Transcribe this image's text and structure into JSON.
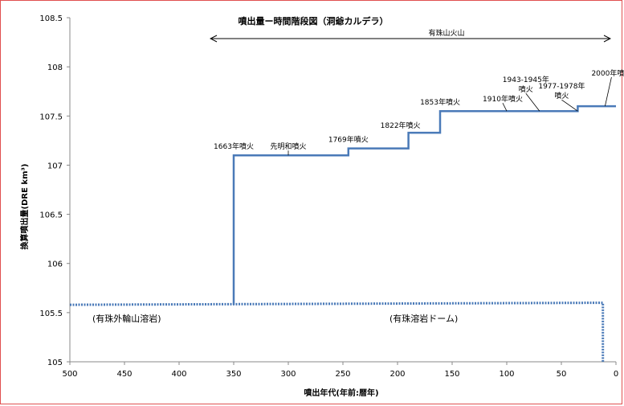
{
  "chart_data": {
    "type": "line",
    "title": "噴出量ー時間階段図（洞爺カルデラ）",
    "xlabel": "噴出年代(年前:暦年)",
    "ylabel": "換算噴出量(DRE km³)",
    "xlim": [
      500,
      0
    ],
    "ylim": [
      105,
      108.5
    ],
    "x_ticks": [
      "500",
      "450",
      "400",
      "350",
      "300",
      "250",
      "200",
      "150",
      "100",
      "50",
      "0"
    ],
    "y_ticks": [
      "105",
      "105.5",
      "106",
      "106.5",
      "107",
      "107.5",
      "108",
      "108.5"
    ],
    "grid": false,
    "series": [
      {
        "style": "solid",
        "color": "#4a7ab8",
        "points": [
          [
            350,
            105.58
          ],
          [
            350,
            107.1
          ],
          [
            245,
            107.1
          ],
          [
            245,
            107.17
          ],
          [
            190,
            107.17
          ],
          [
            190,
            107.33
          ],
          [
            161,
            107.33
          ],
          [
            161,
            107.55
          ],
          [
            35,
            107.55
          ],
          [
            35,
            107.6
          ],
          [
            0,
            107.6
          ]
        ]
      },
      {
        "style": "dotted",
        "color": "#4a7ab8",
        "points": [
          [
            500,
            105.58
          ],
          [
            12,
            105.6
          ],
          [
            12,
            105
          ]
        ]
      }
    ],
    "annotations": [
      {
        "text": "1663年噴火",
        "x": 350,
        "y": 107.1
      },
      {
        "text": "先明和噴火",
        "x": 300,
        "y": 107.1
      },
      {
        "text": "1769年噴火",
        "x": 245,
        "y": 107.17
      },
      {
        "text": "1822年噴火",
        "x": 190,
        "y": 107.33
      },
      {
        "text": "1853年噴火",
        "x": 161,
        "y": 107.55
      },
      {
        "text": "1910年噴火",
        "x": 100,
        "y": 107.55
      },
      {
        "text": "1943-1945年噴火",
        "x": 70,
        "y": 107.55
      },
      {
        "text": "1977-1978年噴火",
        "x": 35,
        "y": 107.55
      },
      {
        "text": "2000年噴火",
        "x": 10,
        "y": 107.6
      }
    ],
    "range_label": "有珠山火山",
    "region_labels": [
      "(有珠外輪山溶岩)",
      "(有珠溶岩ドーム)"
    ]
  }
}
